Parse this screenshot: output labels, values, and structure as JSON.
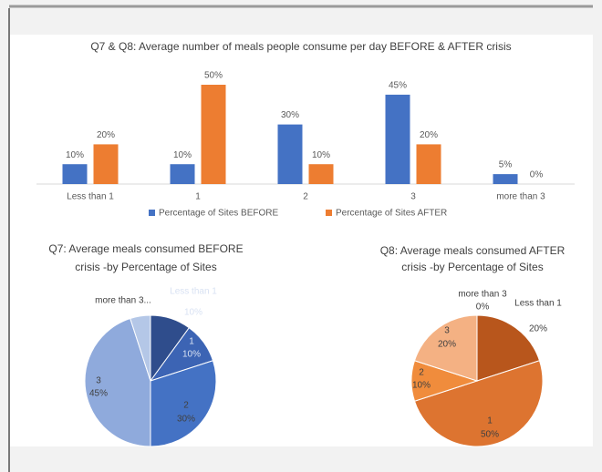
{
  "chart_data": [
    {
      "type": "bar",
      "title": "Q7 & Q8: Average number of meals people consume per day BEFORE & AFTER crisis",
      "categories": [
        "Less than 1",
        "1",
        "2",
        "3",
        "more than 3"
      ],
      "series": [
        {
          "name": "Percentage of Sites BEFORE",
          "color": "#4472c4",
          "values": [
            10,
            10,
            30,
            45,
            5
          ],
          "value_labels": [
            "10%",
            "10%",
            "30%",
            "45%",
            "5%"
          ]
        },
        {
          "name": "Percentage of Sites AFTER",
          "color": "#ed7d31",
          "values": [
            20,
            50,
            10,
            20,
            0
          ],
          "value_labels": [
            "20%",
            "50%",
            "10%",
            "20%",
            "0%"
          ]
        }
      ]
    },
    {
      "type": "pie",
      "title": [
        "Q7: Average meals consumed BEFORE",
        "crisis -by Percentage of Sites"
      ],
      "categories": [
        "Less than 1",
        "1",
        "2",
        "3",
        "more than 3..."
      ],
      "values": [
        10,
        10,
        30,
        45,
        5
      ],
      "value_labels": [
        "10%",
        "10%",
        "30%",
        "45%",
        null
      ],
      "colors": [
        "#2f4d8c",
        "#3c64b4",
        "#4472c4",
        "#8faadc",
        "#b4c7e7"
      ]
    },
    {
      "type": "pie",
      "title": [
        "Q8: Average meals consumed AFTER",
        "crisis -by Percentage of Sites"
      ],
      "categories": [
        "Less than 1",
        "1",
        "2",
        "3",
        "more than 3"
      ],
      "values": [
        20,
        50,
        10,
        20,
        0
      ],
      "value_labels": [
        "20%",
        "50%",
        "10%",
        "20%",
        "0%"
      ],
      "colors": [
        "#b8561c",
        "#dd7430",
        "#f08c3c",
        "#f4b183",
        "#f8cbad"
      ]
    }
  ]
}
